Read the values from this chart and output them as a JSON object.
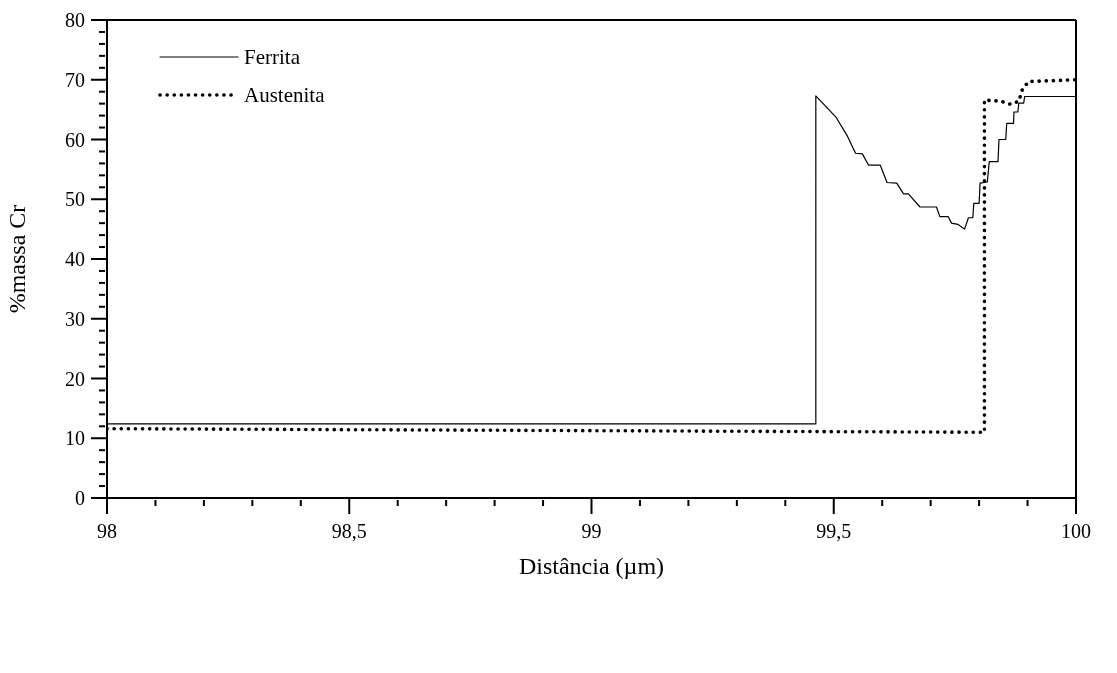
{
  "chart_data": {
    "type": "line",
    "xlabel": "Distância (µm)",
    "ylabel": "%massa Cr",
    "xlim": [
      98,
      100
    ],
    "ylim": [
      0,
      80
    ],
    "xticks": [
      98,
      {
        "value": 98.1,
        "label": null
      },
      {
        "value": 98.2,
        "label": null
      },
      {
        "value": 98.3,
        "label": null
      },
      {
        "value": 98.4,
        "label": null
      },
      {
        "value": 98.5,
        "label": "98,5"
      },
      {
        "value": 98.6,
        "label": null
      },
      {
        "value": 98.7,
        "label": null
      },
      {
        "value": 98.8,
        "label": null
      },
      {
        "value": 98.9,
        "label": null
      },
      99,
      {
        "value": 99.1,
        "label": null
      },
      {
        "value": 99.2,
        "label": null
      },
      {
        "value": 99.3,
        "label": null
      },
      {
        "value": 99.4,
        "label": null
      },
      {
        "value": 99.5,
        "label": "99,5"
      },
      {
        "value": 99.6,
        "label": null
      },
      {
        "value": 99.7,
        "label": null
      },
      {
        "value": 99.8,
        "label": null
      },
      {
        "value": 99.9,
        "label": null
      },
      100
    ],
    "yticks": [
      0,
      {
        "value": 2,
        "label": null
      },
      {
        "value": 4,
        "label": null
      },
      {
        "value": 6,
        "label": null
      },
      {
        "value": 8,
        "label": null
      },
      10,
      {
        "value": 12,
        "label": null
      },
      {
        "value": 14,
        "label": null
      },
      {
        "value": 16,
        "label": null
      },
      {
        "value": 18,
        "label": null
      },
      20,
      {
        "value": 22,
        "label": null
      },
      {
        "value": 24,
        "label": null
      },
      {
        "value": 26,
        "label": null
      },
      {
        "value": 28,
        "label": null
      },
      30,
      {
        "value": 32,
        "label": null
      },
      {
        "value": 34,
        "label": null
      },
      {
        "value": 36,
        "label": null
      },
      {
        "value": 38,
        "label": null
      },
      40,
      {
        "value": 42,
        "label": null
      },
      {
        "value": 44,
        "label": null
      },
      {
        "value": 46,
        "label": null
      },
      {
        "value": 48,
        "label": null
      },
      50,
      {
        "value": 52,
        "label": null
      },
      {
        "value": 54,
        "label": null
      },
      {
        "value": 56,
        "label": null
      },
      {
        "value": 58,
        "label": null
      },
      60,
      {
        "value": 62,
        "label": null
      },
      {
        "value": 64,
        "label": null
      },
      {
        "value": 66,
        "label": null
      },
      {
        "value": 68,
        "label": null
      },
      70,
      {
        "value": 72,
        "label": null
      },
      {
        "value": 74,
        "label": null
      },
      {
        "value": 76,
        "label": null
      },
      {
        "value": 78,
        "label": null
      },
      80
    ],
    "grid": false,
    "legend": "top left",
    "marker": "none",
    "series": [
      {
        "name": "Ferrita",
        "color": "#000000",
        "line_style": "solid",
        "x": [
          98,
          99.463,
          99.463,
          99.504,
          99.528,
          99.545,
          99.559,
          99.572,
          99.596,
          99.61,
          99.63,
          99.644,
          99.654,
          99.678,
          99.712,
          99.719,
          99.736,
          99.743,
          99.756,
          99.77,
          99.778,
          99.787,
          99.789,
          99.8,
          99.802,
          99.817,
          99.821,
          99.839,
          99.841,
          99.855,
          99.857,
          99.871,
          99.872,
          99.88,
          99.882,
          99.892,
          99.894,
          100
        ],
        "values": [
          12.4,
          12.4,
          67.3,
          63.8,
          60.6,
          57.7,
          57.6,
          55.7,
          55.7,
          52.8,
          52.7,
          50.9,
          50.9,
          48.7,
          48.7,
          47.1,
          47.1,
          46,
          45.8,
          45,
          46.9,
          46.9,
          49.3,
          49.3,
          52.7,
          52.9,
          56.3,
          56.3,
          60,
          60,
          62.7,
          62.7,
          64.6,
          64.6,
          66.1,
          66.1,
          67.2,
          67.2
        ]
      },
      {
        "name": "Austenita",
        "color": "#000000",
        "line_style": "dotted",
        "x": [
          98,
          99.811,
          99.811,
          99.845,
          99.865,
          99.882,
          99.889,
          99.902,
          100
        ],
        "values": [
          11.6,
          11,
          66.6,
          66.4,
          65.9,
          66.4,
          68.3,
          69.7,
          70
        ]
      }
    ]
  }
}
